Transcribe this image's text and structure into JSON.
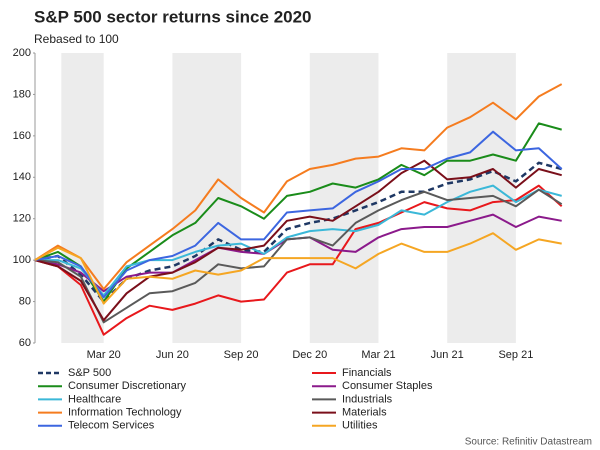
{
  "chart_data": {
    "type": "line",
    "title": "S&P 500 sector returns since 2020",
    "subtitle": "Rebased to 100",
    "source": "Source: Refinitiv Datastream",
    "categories": [
      null,
      null,
      null,
      "Mar 20",
      null,
      null,
      "Jun 20",
      null,
      null,
      "Sep 20",
      null,
      null,
      "Dec 20",
      null,
      null,
      "Mar 21",
      null,
      null,
      "Jun 21",
      null,
      null,
      "Sep 21",
      null,
      null
    ],
    "ylim": [
      60,
      200
    ],
    "yticks": [
      60,
      80,
      100,
      120,
      140,
      160,
      180,
      200
    ],
    "grid": false,
    "series": [
      {
        "name": "S&P 500",
        "color": "#1f3864",
        "dashed": true,
        "values": [
          100,
          102,
          93,
          80,
          91,
          95,
          97,
          102,
          110,
          105,
          104,
          115,
          118,
          120,
          124,
          128,
          133,
          133,
          137,
          139,
          143,
          138,
          147,
          144
        ]
      },
      {
        "name": "Financials",
        "color": "#e8181c",
        "values": [
          100,
          97,
          88,
          64,
          72,
          78,
          76,
          79,
          83,
          80,
          81,
          94,
          98,
          98,
          115,
          118,
          123,
          128,
          125,
          124,
          128,
          129,
          136,
          126
        ]
      },
      {
        "name": "Consumer Discretionary",
        "color": "#1a8c1a",
        "values": [
          100,
          104,
          97,
          80,
          96,
          104,
          112,
          118,
          130,
          126,
          120,
          131,
          133,
          137,
          135,
          139,
          146,
          141,
          148,
          148,
          151,
          148,
          166,
          163
        ]
      },
      {
        "name": "Consumer Staples",
        "color": "#8b1a8b",
        "values": [
          100,
          98,
          94,
          85,
          92,
          94,
          94,
          100,
          106,
          104,
          103,
          110,
          111,
          105,
          104,
          111,
          115,
          116,
          116,
          119,
          122,
          116,
          121,
          119
        ]
      },
      {
        "name": "Healthcare",
        "color": "#3bb8d8",
        "values": [
          100,
          100,
          96,
          83,
          97,
          100,
          100,
          104,
          107,
          108,
          103,
          111,
          114,
          115,
          114,
          117,
          124,
          122,
          128,
          133,
          136,
          128,
          134,
          131
        ]
      },
      {
        "name": "Industrials",
        "color": "#5a5a5a",
        "values": [
          100,
          99,
          92,
          70,
          77,
          84,
          85,
          89,
          98,
          96,
          97,
          110,
          111,
          107,
          118,
          124,
          129,
          133,
          129,
          130,
          131,
          126,
          134,
          127
        ]
      },
      {
        "name": "Information Technology",
        "color": "#f57c1f",
        "values": [
          100,
          107,
          101,
          86,
          99,
          107,
          115,
          124,
          139,
          130,
          123,
          138,
          144,
          146,
          149,
          150,
          154,
          153,
          164,
          169,
          176,
          168,
          179,
          185
        ]
      },
      {
        "name": "Materials",
        "color": "#7a0f1a",
        "values": [
          100,
          97,
          90,
          71,
          84,
          92,
          94,
          99,
          106,
          105,
          107,
          119,
          121,
          119,
          126,
          133,
          142,
          148,
          139,
          140,
          144,
          135,
          144,
          141
        ]
      },
      {
        "name": "Telecom Services",
        "color": "#3c66e0",
        "values": [
          100,
          102,
          97,
          82,
          95,
          100,
          102,
          107,
          118,
          110,
          110,
          123,
          124,
          125,
          133,
          138,
          144,
          144,
          149,
          152,
          162,
          153,
          154,
          144
        ]
      },
      {
        "name": "Utilities",
        "color": "#f5a623",
        "values": [
          100,
          106,
          101,
          79,
          91,
          92,
          91,
          95,
          93,
          95,
          101,
          101,
          101,
          101,
          96,
          103,
          108,
          104,
          104,
          108,
          113,
          105,
          110,
          108
        ]
      }
    ]
  }
}
